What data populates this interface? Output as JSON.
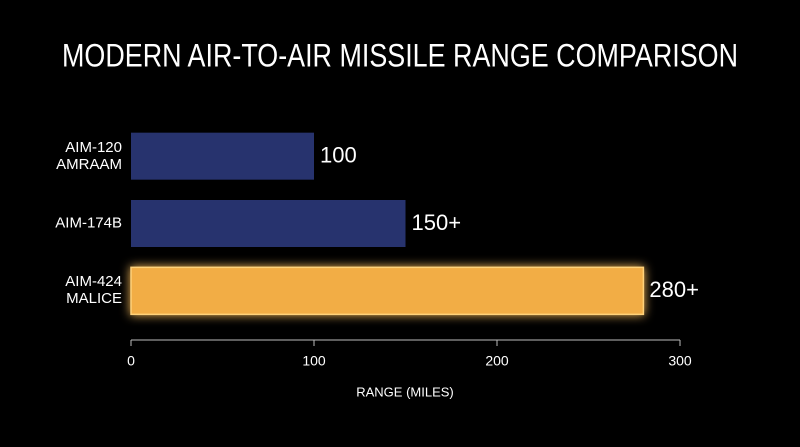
{
  "chart_data": {
    "type": "barh",
    "title": "MODERN AIR-TO-AIR MISSILE RANGE COMPARISON",
    "categories": [
      "AIM-120\nAMRAAM",
      "AIM-174B",
      "AIM-424\nMALICE"
    ],
    "values": [
      100,
      150,
      280
    ],
    "value_labels": [
      "100",
      "150+",
      "280+"
    ],
    "colors": [
      "#27336e",
      "#27336e",
      "#f2ad45"
    ],
    "value_label_colors": [
      "#34428a",
      "#ffffff",
      "#f2ad45"
    ],
    "glow": [
      false,
      false,
      true
    ],
    "xlabel": "RANGE (MILES)",
    "xlim": [
      0,
      300
    ],
    "xticks": [
      0,
      100,
      200,
      300
    ]
  }
}
